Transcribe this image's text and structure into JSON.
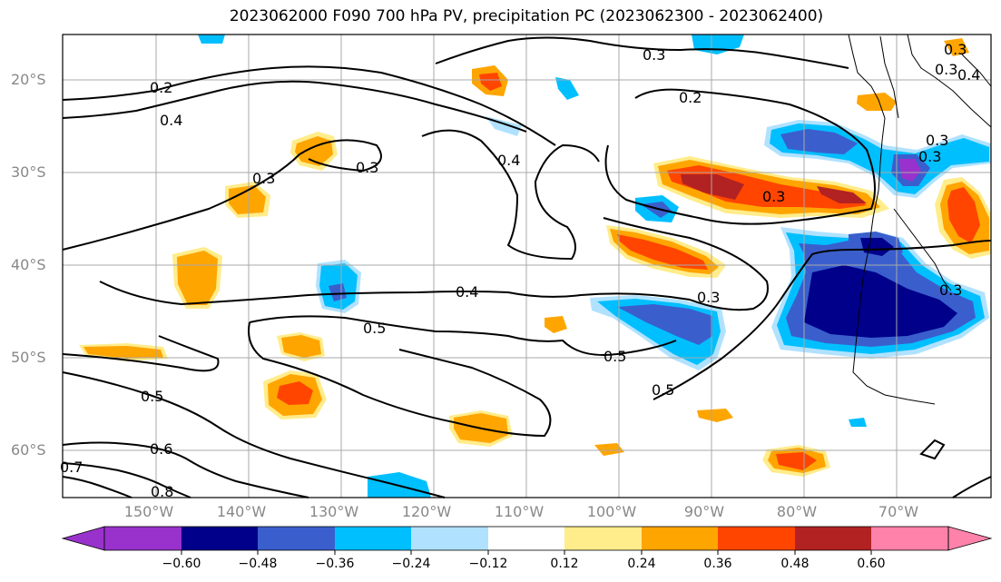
{
  "title": "2023062000 F090 700 hPa PV, precipitation PC (2023062300 - 2023062400)",
  "lat_labels": [
    "20°S",
    "30°S",
    "40°S",
    "50°S",
    "60°S"
  ],
  "lon_labels": [
    "150°W",
    "140°W",
    "130°W",
    "120°W",
    "110°W",
    "100°W",
    "90°W",
    "80°W",
    "70°W"
  ],
  "contour_labels": [
    "0.3",
    "0.2",
    "0.4",
    "0.3",
    "0.3",
    "0.4",
    "0.2",
    "0.3",
    "0.3",
    "0.4",
    "0.3",
    "0.5",
    "0.5",
    "0.5",
    "0.5",
    "0.6",
    "0.7",
    "0.8",
    "0.3",
    "0.4",
    "0.3",
    "0.3",
    "0.3"
  ],
  "colorbar": {
    "ticks": [
      "−0.60",
      "−0.48",
      "−0.36",
      "−0.24",
      "−0.12",
      "0.12",
      "0.24",
      "0.36",
      "0.48",
      "0.60"
    ],
    "colors": [
      "#9932cc",
      "#00008b",
      "#3a5fcd",
      "#00bfff",
      "#b0e2ff",
      "#ffffff",
      "#ffec8b",
      "#ffa500",
      "#ff4500",
      "#b22222",
      "#ff82ab"
    ]
  }
}
